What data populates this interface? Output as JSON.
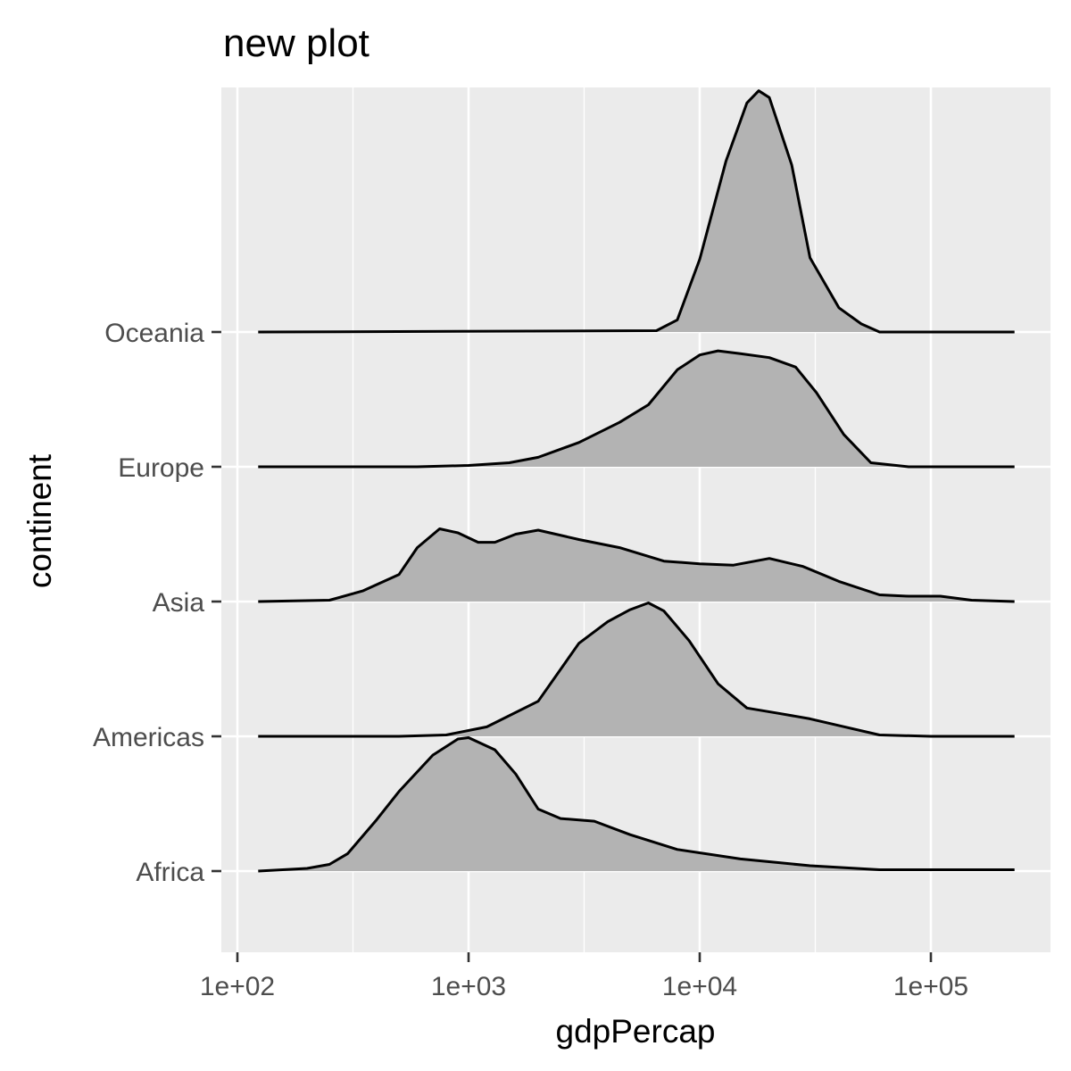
{
  "chart_data": {
    "type": "area",
    "subtype": "ridgeline-density",
    "title": "new plot",
    "xlabel": "gdpPercap",
    "ylabel": "continent",
    "x_scale": "log10",
    "xlim": [
      100,
      230000
    ],
    "x_ticks": [
      {
        "value": 100,
        "label": "1e+02"
      },
      {
        "value": 1000,
        "label": "1e+03"
      },
      {
        "value": 10000,
        "label": "1e+04"
      },
      {
        "value": 100000,
        "label": "1e+05"
      }
    ],
    "categories": [
      "Africa",
      "Americas",
      "Asia",
      "Europe",
      "Oceania"
    ],
    "series": [
      {
        "name": "Africa",
        "points": [
          [
            123,
            0
          ],
          [
            200,
            0.02
          ],
          [
            250,
            0.05
          ],
          [
            300,
            0.13
          ],
          [
            400,
            0.38
          ],
          [
            500,
            0.59
          ],
          [
            700,
            0.86
          ],
          [
            900,
            0.98
          ],
          [
            1000,
            0.99
          ],
          [
            1300,
            0.9
          ],
          [
            1600,
            0.72
          ],
          [
            2000,
            0.46
          ],
          [
            2500,
            0.39
          ],
          [
            3500,
            0.37
          ],
          [
            5000,
            0.27
          ],
          [
            8000,
            0.16
          ],
          [
            15000,
            0.09
          ],
          [
            30000,
            0.04
          ],
          [
            60000,
            0.01
          ],
          [
            100000,
            0.01
          ],
          [
            230000,
            0.01
          ]
        ]
      },
      {
        "name": "Americas",
        "points": [
          [
            123,
            0
          ],
          [
            500,
            0
          ],
          [
            800,
            0.01
          ],
          [
            1200,
            0.07
          ],
          [
            2000,
            0.26
          ],
          [
            3000,
            0.69
          ],
          [
            4000,
            0.85
          ],
          [
            5000,
            0.94
          ],
          [
            6000,
            0.99
          ],
          [
            7000,
            0.93
          ],
          [
            9000,
            0.71
          ],
          [
            12000,
            0.39
          ],
          [
            16000,
            0.21
          ],
          [
            22000,
            0.17
          ],
          [
            30000,
            0.13
          ],
          [
            40000,
            0.08
          ],
          [
            60000,
            0.01
          ],
          [
            100000,
            0
          ],
          [
            230000,
            0
          ]
        ]
      },
      {
        "name": "Asia",
        "points": [
          [
            123,
            0
          ],
          [
            250,
            0.01
          ],
          [
            350,
            0.08
          ],
          [
            500,
            0.2
          ],
          [
            600,
            0.4
          ],
          [
            750,
            0.54
          ],
          [
            900,
            0.51
          ],
          [
            1100,
            0.44
          ],
          [
            1300,
            0.44
          ],
          [
            1600,
            0.5
          ],
          [
            2000,
            0.53
          ],
          [
            3000,
            0.46
          ],
          [
            4500,
            0.4
          ],
          [
            7000,
            0.3
          ],
          [
            10000,
            0.28
          ],
          [
            14000,
            0.27
          ],
          [
            20000,
            0.32
          ],
          [
            28000,
            0.26
          ],
          [
            40000,
            0.15
          ],
          [
            60000,
            0.05
          ],
          [
            80000,
            0.04
          ],
          [
            110000,
            0.04
          ],
          [
            150000,
            0.01
          ],
          [
            230000,
            0
          ]
        ]
      },
      {
        "name": "Europe",
        "points": [
          [
            123,
            0
          ],
          [
            600,
            0
          ],
          [
            1000,
            0.01
          ],
          [
            1500,
            0.03
          ],
          [
            2000,
            0.07
          ],
          [
            3000,
            0.18
          ],
          [
            4500,
            0.33
          ],
          [
            6000,
            0.46
          ],
          [
            8000,
            0.72
          ],
          [
            10000,
            0.83
          ],
          [
            12000,
            0.86
          ],
          [
            15000,
            0.84
          ],
          [
            20000,
            0.81
          ],
          [
            26000,
            0.74
          ],
          [
            32000,
            0.55
          ],
          [
            42000,
            0.24
          ],
          [
            55000,
            0.03
          ],
          [
            80000,
            0
          ],
          [
            230000,
            0
          ]
        ]
      },
      {
        "name": "Oceania",
        "points": [
          [
            123,
            0
          ],
          [
            6500,
            0.01
          ],
          [
            8000,
            0.09
          ],
          [
            10000,
            0.54
          ],
          [
            13000,
            1.27
          ],
          [
            16000,
            1.7
          ],
          [
            18000,
            1.79
          ],
          [
            20000,
            1.74
          ],
          [
            25000,
            1.24
          ],
          [
            30000,
            0.55
          ],
          [
            40000,
            0.18
          ],
          [
            50000,
            0.06
          ],
          [
            60000,
            0
          ],
          [
            230000,
            0
          ]
        ]
      }
    ],
    "fill_color": "#b3b3b3",
    "line_color": "#000000",
    "panel_background": "#ebebeb",
    "grid_color": "#ffffff",
    "legend": "none"
  }
}
